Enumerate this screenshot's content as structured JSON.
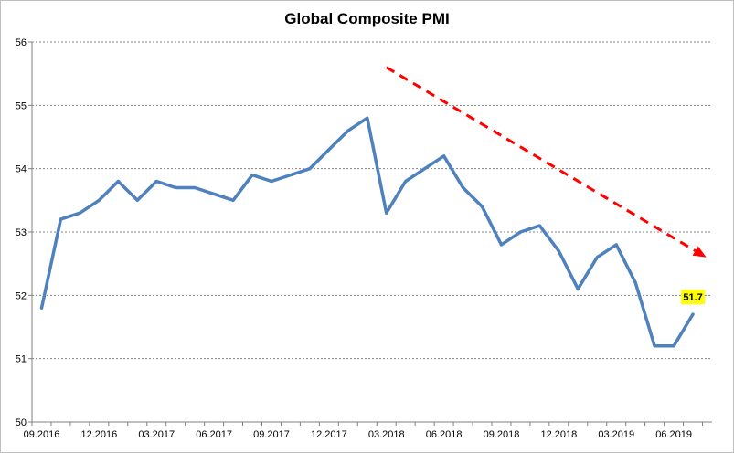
{
  "chart_data": {
    "type": "line",
    "title": "Global Composite PMI",
    "xlabel": "",
    "ylabel": "",
    "ylim": [
      50,
      56
    ],
    "y_ticks": [
      50,
      51,
      52,
      53,
      54,
      55,
      56
    ],
    "x_tick_labels": [
      "09.2016",
      "12.2016",
      "03.2017",
      "06.2017",
      "09.2017",
      "12.2017",
      "03.2018",
      "06.2018",
      "09.2018",
      "12.2018",
      "03.2019",
      "06.2019"
    ],
    "grid": "horizontal dashed",
    "series": [
      {
        "color": "#4f81bd",
        "x": [
          "09.2016",
          "10.2016",
          "11.2016",
          "12.2016",
          "01.2017",
          "02.2017",
          "03.2017",
          "04.2017",
          "05.2017",
          "06.2017",
          "07.2017",
          "08.2017",
          "09.2017",
          "10.2017",
          "11.2017",
          "12.2017",
          "01.2018",
          "02.2018",
          "03.2018",
          "04.2018",
          "05.2018",
          "06.2018",
          "07.2018",
          "08.2018",
          "09.2018",
          "10.2018",
          "11.2018",
          "12.2018",
          "01.2019",
          "02.2019",
          "03.2019",
          "04.2019",
          "05.2019",
          "06.2019",
          "07.2019"
        ],
        "values": [
          51.8,
          53.2,
          53.3,
          53.5,
          53.8,
          53.5,
          53.8,
          53.7,
          53.7,
          53.6,
          53.5,
          53.9,
          53.8,
          53.9,
          54.0,
          54.3,
          54.6,
          54.8,
          53.3,
          53.8,
          54.0,
          54.2,
          53.7,
          53.4,
          52.8,
          53.0,
          53.1,
          52.7,
          52.1,
          52.6,
          52.8,
          52.2,
          51.2,
          51.2,
          51.7
        ]
      }
    ],
    "data_labels": [
      {
        "x": "07.2019",
        "value": "51.7",
        "background": "#ffff00"
      }
    ],
    "annotations": [
      {
        "type": "trend-arrow",
        "style": "dashed",
        "color": "#ff0000",
        "from": {
          "x": "03.2018",
          "y": 55.6
        },
        "to": {
          "x": "07.2019",
          "y": 52.6
        }
      }
    ]
  }
}
